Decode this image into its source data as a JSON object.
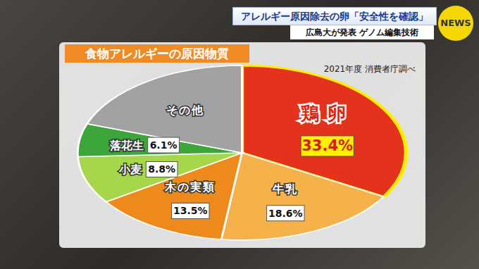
{
  "chart_data": {
    "type": "pie",
    "title": "食物アレルギーの原因物質",
    "subtitle": "2021年度 消費者庁調べ",
    "categories": [
      "鶏卵",
      "牛乳",
      "木の実類",
      "小麦",
      "落花生",
      "その他"
    ],
    "values": [
      33.4,
      18.6,
      13.5,
      8.8,
      6.1,
      19.6
    ],
    "value_labels": [
      "33.4%",
      "18.6%",
      "13.5%",
      "8.8%",
      "6.1%",
      null
    ],
    "colors": [
      "#e5321c",
      "#f5b24a",
      "#ee8a1c",
      "#a6d64a",
      "#3ca63a",
      "#a2a2a2"
    ],
    "data_labels": true
  },
  "header": {
    "headline": "アレルギー原因除去の卵「安全性を確認」",
    "subheadline": "広島大が発表 ゲノム編集技術",
    "logo": "NEWS"
  }
}
